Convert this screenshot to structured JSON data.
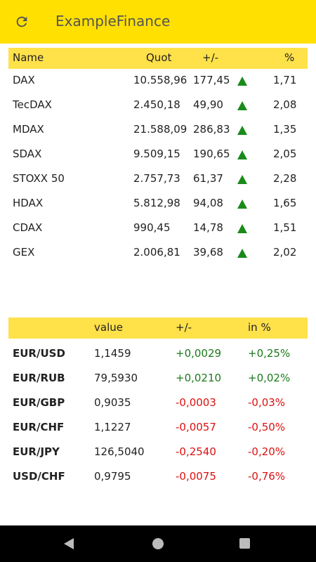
{
  "app": {
    "title": "ExampleFinance"
  },
  "indices": {
    "headers": {
      "name": "Name",
      "quot": "Quot",
      "change": "+/-",
      "percent": "%"
    },
    "rows": [
      {
        "name": "DAX",
        "quot": "10.558,96",
        "change": "177,45",
        "percent": "1,71",
        "trend": "up"
      },
      {
        "name": "TecDAX",
        "quot": "2.450,18",
        "change": "49,90",
        "percent": "2,08",
        "trend": "up"
      },
      {
        "name": "MDAX",
        "quot": "21.588,09",
        "change": "286,83",
        "percent": "1,35",
        "trend": "up"
      },
      {
        "name": "SDAX",
        "quot": "9.509,15",
        "change": "190,65",
        "percent": "2,05",
        "trend": "up"
      },
      {
        "name": "STOXX 50",
        "quot": "2.757,73",
        "change": "61,37",
        "percent": "2,28",
        "trend": "up"
      },
      {
        "name": "HDAX",
        "quot": "5.812,98",
        "change": "94,08",
        "percent": "1,65",
        "trend": "up"
      },
      {
        "name": "CDAX",
        "quot": "990,45",
        "change": "14,78",
        "percent": "1,51",
        "trend": "up"
      },
      {
        "name": "GEX",
        "quot": "2.006,81",
        "change": "39,68",
        "percent": "2,02",
        "trend": "up"
      }
    ]
  },
  "currencies": {
    "headers": {
      "name": "",
      "value": "value",
      "change": "+/-",
      "percent": "in %"
    },
    "rows": [
      {
        "name": "EUR/USD",
        "value": "1,1459",
        "change": "+0,0029",
        "percent": "+0,25%",
        "trend": "up"
      },
      {
        "name": "EUR/RUB",
        "value": "79,5930",
        "change": "+0,0210",
        "percent": "+0,02%",
        "trend": "up"
      },
      {
        "name": "EUR/GBP",
        "value": "0,9035",
        "change": "-0,0003",
        "percent": "-0,03%",
        "trend": "down"
      },
      {
        "name": "EUR/CHF",
        "value": "1,1227",
        "change": "-0,0057",
        "percent": "-0,50%",
        "trend": "down"
      },
      {
        "name": "EUR/JPY",
        "value": "126,5040",
        "change": "-0,2540",
        "percent": "-0,20%",
        "trend": "down"
      },
      {
        "name": "USD/CHF",
        "value": "0,9795",
        "change": "-0,0075",
        "percent": "-0,76%",
        "trend": "down"
      }
    ]
  },
  "colors": {
    "appbar": "#FFE000",
    "header": "#FFE14A",
    "positive": "#1a7a1a",
    "negative": "#dd1111"
  },
  "icons": {
    "refresh": "refresh-icon",
    "trend_up": "triangle-up-icon"
  }
}
